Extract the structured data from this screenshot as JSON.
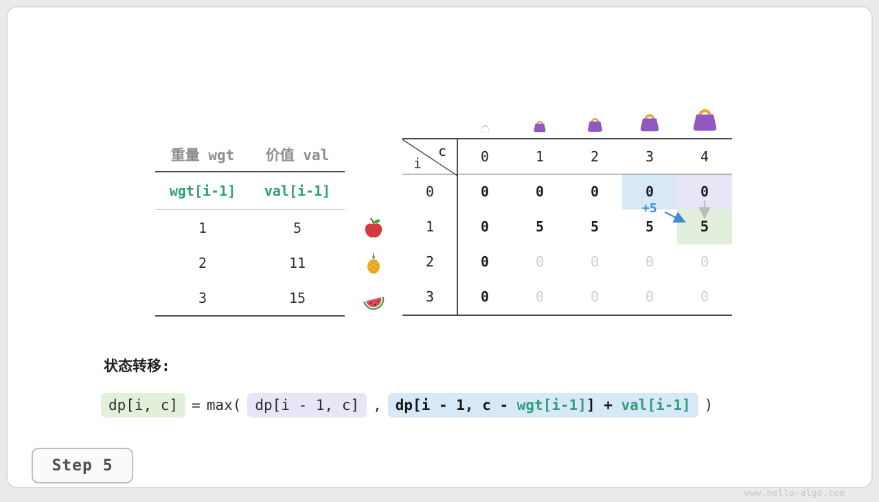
{
  "page": {
    "watermark": "www.hello-algo.com",
    "step_label": "Step 5"
  },
  "colors": {
    "green_text": "#2e9e79",
    "hl_blue": "#d7e9f7",
    "hl_lavender": "#e6e6f6",
    "hl_green": "#e2efda",
    "annotation_blue": "#3f8cd6",
    "arrow_gray": "#bcbcbc",
    "bag_purple": "#9158c0",
    "bag_handle": "#e9a83e"
  },
  "item_table": {
    "headers": [
      "重量 wgt",
      "价值 val"
    ],
    "formula_row": [
      "wgt[i-1]",
      "val[i-1]"
    ],
    "rows": [
      [
        "1",
        "5"
      ],
      [
        "2",
        "11"
      ],
      [
        "3",
        "15"
      ]
    ],
    "fruits": [
      "apple",
      "pineapple",
      "watermelon"
    ]
  },
  "dp_table": {
    "corner": {
      "col_label": "c",
      "row_label": "i"
    },
    "col_headers": [
      "0",
      "1",
      "2",
      "3",
      "4"
    ],
    "row_labels": [
      "0",
      "1",
      "2",
      "3"
    ],
    "bag_sizes": [
      15,
      22,
      27,
      34,
      43
    ],
    "cells": [
      [
        {
          "v": "0"
        },
        {
          "v": "0"
        },
        {
          "v": "0"
        },
        {
          "v": "0",
          "hl": "blue"
        },
        {
          "v": "0",
          "hl": "lavender"
        }
      ],
      [
        {
          "v": "0"
        },
        {
          "v": "5"
        },
        {
          "v": "5"
        },
        {
          "v": "5"
        },
        {
          "v": "5",
          "hl": "green"
        }
      ],
      [
        {
          "v": "0"
        },
        {
          "v": "0",
          "dim": true
        },
        {
          "v": "0",
          "dim": true
        },
        {
          "v": "0",
          "dim": true
        },
        {
          "v": "0",
          "dim": true
        }
      ],
      [
        {
          "v": "0"
        },
        {
          "v": "0",
          "dim": true
        },
        {
          "v": "0",
          "dim": true
        },
        {
          "v": "0",
          "dim": true
        },
        {
          "v": "0",
          "dim": true
        }
      ]
    ],
    "annotation": "+5"
  },
  "formula": {
    "label": "状态转移:",
    "lhs": "dp[i, c]",
    "equals": "=",
    "max_open": "max(",
    "option1": "dp[i - 1, c]",
    "comma": ",",
    "option2": {
      "p1": "dp[i - 1, c - ",
      "p2": "wgt[i-1]",
      "p3": "] + ",
      "p4": "val[i-1]"
    },
    "close": ")"
  }
}
